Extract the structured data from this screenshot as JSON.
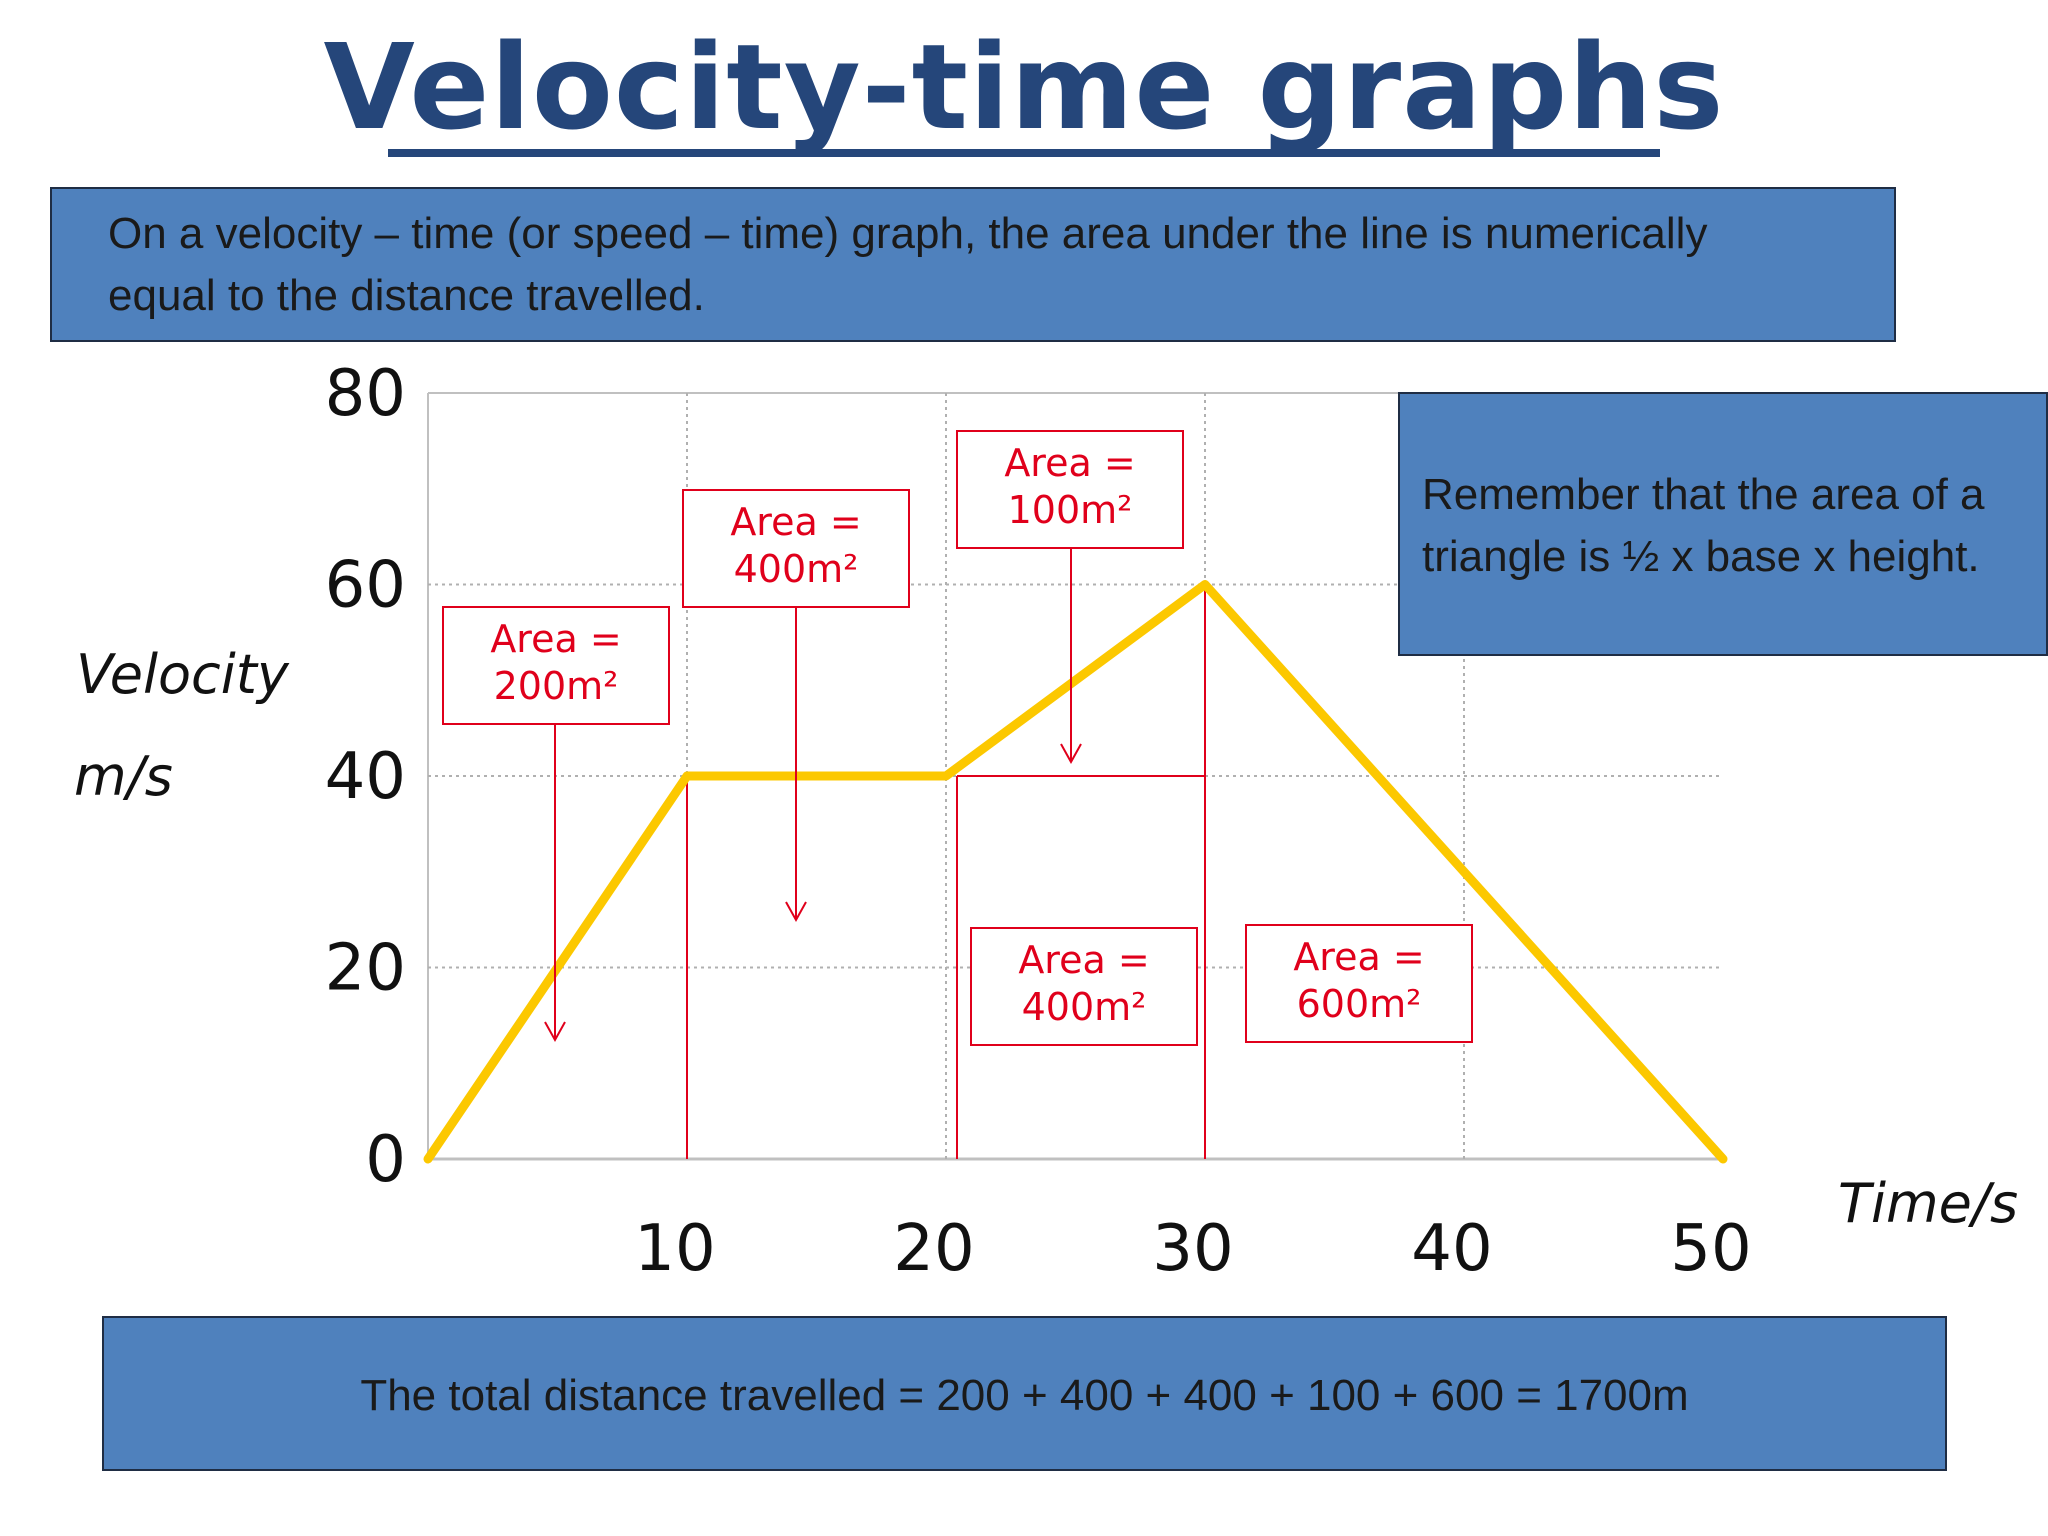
{
  "page": {
    "title": "Velocity-time graphs",
    "intro_text_line1": "On a velocity – time (or speed – time) graph, the area under the line is numerically",
    "intro_text_line2": "equal to the distance travelled.",
    "remember_line1": "Remember that the area of a",
    "remember_line2": "triangle is ½ x base x height.",
    "total_text": "The total distance travelled = 200 + 400 + 400 + 100 + 600 = 1700m"
  },
  "colors": {
    "title": "#25467a",
    "box_fill": "#4f81bd",
    "line": "#fcc800",
    "annotation": "#e0001b",
    "grid": "#b0b0b0",
    "axis": "#c0c0c0"
  },
  "chart_data": {
    "type": "line",
    "ylabel_line1": "Velocity",
    "ylabel_line2": "m/s",
    "xlabel": "Time/s",
    "x": [
      0,
      10,
      20,
      30,
      50
    ],
    "series": [
      {
        "values": [
          0,
          40,
          40,
          60,
          0
        ]
      }
    ],
    "xlim": [
      0,
      50
    ],
    "ylim": [
      0,
      80
    ],
    "xticks": [
      10,
      20,
      30,
      40,
      50
    ],
    "yticks": [
      0,
      20,
      40,
      60,
      80
    ],
    "grid": true,
    "annotations": [
      {
        "line1": "Area =",
        "line2": "200m²"
      },
      {
        "line1": "Area =",
        "line2": "400m²"
      },
      {
        "line1": "Area =",
        "line2": "100m²"
      },
      {
        "line1": "Area =",
        "line2": "400m²"
      },
      {
        "line1": "Area =",
        "line2": "600m²"
      }
    ]
  }
}
